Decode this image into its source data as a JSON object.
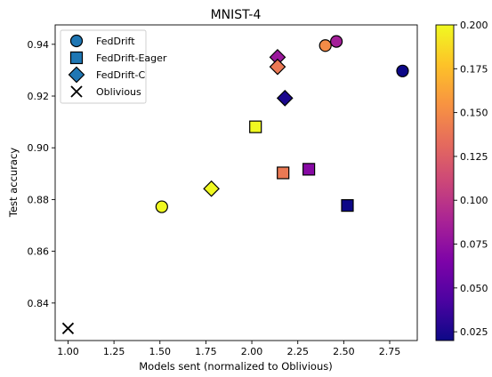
{
  "chart_data": {
    "type": "scatter",
    "title": "MNIST-4",
    "xlabel": "Models sent (normalized to Oblivious)",
    "ylabel": "Test accuracy",
    "xlim": [
      0.93,
      2.9
    ],
    "ylim": [
      0.8255,
      0.9475
    ],
    "xticks": [
      1.0,
      1.25,
      1.5,
      1.75,
      2.0,
      2.25,
      2.5,
      2.75
    ],
    "xtick_labels": [
      "1.00",
      "1.25",
      "1.50",
      "1.75",
      "2.00",
      "2.25",
      "2.50",
      "2.75"
    ],
    "yticks": [
      0.84,
      0.86,
      0.88,
      0.9,
      0.92,
      0.94
    ],
    "ytick_labels": [
      "0.84",
      "0.86",
      "0.88",
      "0.90",
      "0.92",
      "0.94"
    ],
    "grid": false,
    "legend_position": "top-left",
    "colorbar": {
      "colormap": "plasma",
      "range": [
        0.02,
        0.2
      ],
      "ticks": [
        0.025,
        0.05,
        0.075,
        0.1,
        0.125,
        0.15,
        0.175,
        0.2
      ],
      "tick_labels": [
        "0.025",
        "0.050",
        "0.075",
        "0.100",
        "0.125",
        "0.150",
        "0.175",
        "0.200"
      ]
    },
    "series": [
      {
        "name": "FedDrift",
        "marker": "circle",
        "points": [
          {
            "x": 2.82,
            "y": 0.9297,
            "c": 0.02
          },
          {
            "x": 2.46,
            "y": 0.9411,
            "c": 0.085
          },
          {
            "x": 2.4,
            "y": 0.9395,
            "c": 0.15
          },
          {
            "x": 1.51,
            "y": 0.8772,
            "c": 0.2
          }
        ]
      },
      {
        "name": "FedDrift-Eager",
        "marker": "square",
        "points": [
          {
            "x": 2.52,
            "y": 0.8777,
            "c": 0.02
          },
          {
            "x": 2.31,
            "y": 0.8917,
            "c": 0.07
          },
          {
            "x": 2.17,
            "y": 0.8903,
            "c": 0.14
          },
          {
            "x": 2.02,
            "y": 0.9081,
            "c": 0.2
          }
        ]
      },
      {
        "name": "FedDrift-C",
        "marker": "diamond",
        "points": [
          {
            "x": 2.18,
            "y": 0.9192,
            "c": 0.025
          },
          {
            "x": 2.14,
            "y": 0.935,
            "c": 0.08
          },
          {
            "x": 2.14,
            "y": 0.9313,
            "c": 0.14
          },
          {
            "x": 1.78,
            "y": 0.8842,
            "c": 0.2
          }
        ]
      },
      {
        "name": "Oblivious",
        "marker": "x",
        "color": "#000000",
        "points": [
          {
            "x": 1.0,
            "y": 0.8302
          }
        ]
      }
    ]
  }
}
